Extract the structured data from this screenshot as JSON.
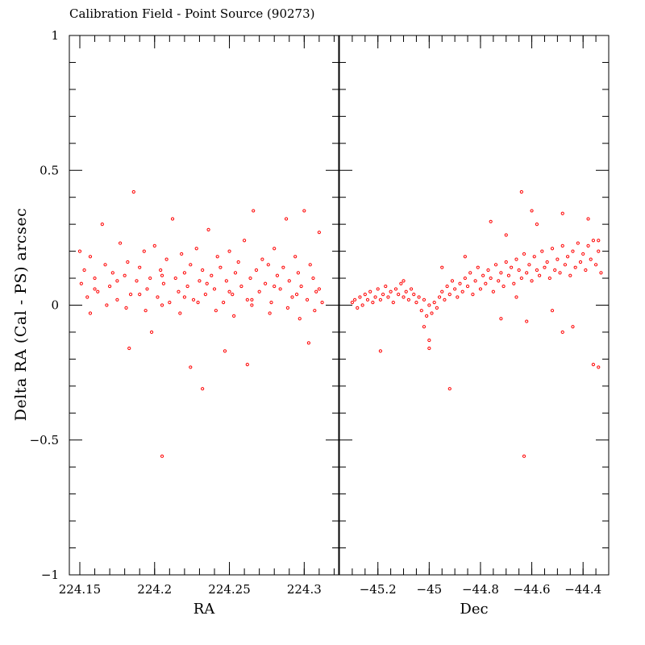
{
  "chart_data": {
    "type": "scatter",
    "title": "Calibration Field - Point Source (90273)",
    "ylabel": "Delta RA (Cal - PS) arcsec",
    "ylim": [
      -1,
      1
    ],
    "yticks": [
      -1,
      -0.5,
      0,
      0.5,
      1
    ],
    "ytick_labels": [
      "−1",
      "−0.5",
      "0",
      "0.5",
      "1"
    ],
    "marker_color": "#ff0000",
    "panels": [
      {
        "xlabel": "RA",
        "xlim": [
          224.143,
          224.323
        ],
        "xticks": [
          224.15,
          224.2,
          224.25,
          224.3
        ],
        "xtick_labels": [
          "224.15",
          "224.2",
          "224.25",
          "224.3"
        ],
        "x_minor_step": 0.01,
        "points": [
          [
            224.15,
            0.2
          ],
          [
            224.151,
            0.08
          ],
          [
            224.153,
            0.13
          ],
          [
            224.155,
            0.03
          ],
          [
            224.157,
            0.18
          ],
          [
            224.16,
            0.1
          ],
          [
            224.162,
            0.05
          ],
          [
            224.165,
            0.3
          ],
          [
            224.167,
            0.15
          ],
          [
            224.17,
            0.07
          ],
          [
            224.172,
            0.12
          ],
          [
            224.175,
            0.02
          ],
          [
            224.177,
            0.23
          ],
          [
            224.18,
            0.11
          ],
          [
            224.182,
            0.16
          ],
          [
            224.184,
            0.04
          ],
          [
            224.186,
            0.42
          ],
          [
            224.188,
            0.09
          ],
          [
            224.19,
            0.14
          ],
          [
            224.193,
            0.2
          ],
          [
            224.195,
            0.06
          ],
          [
            224.197,
            0.1
          ],
          [
            224.2,
            0.22
          ],
          [
            224.202,
            0.03
          ],
          [
            224.204,
            0.13
          ],
          [
            224.206,
            0.08
          ],
          [
            224.208,
            0.17
          ],
          [
            224.21,
            0.01
          ],
          [
            224.212,
            0.32
          ],
          [
            224.214,
            0.1
          ],
          [
            224.216,
            0.05
          ],
          [
            224.218,
            0.19
          ],
          [
            224.22,
            0.12
          ],
          [
            224.222,
            0.07
          ],
          [
            224.224,
            0.15
          ],
          [
            224.226,
            0.02
          ],
          [
            224.228,
            0.21
          ],
          [
            224.23,
            0.09
          ],
          [
            224.232,
            0.13
          ],
          [
            224.234,
            0.04
          ],
          [
            224.236,
            0.28
          ],
          [
            224.238,
            0.11
          ],
          [
            224.24,
            0.06
          ],
          [
            224.242,
            0.18
          ],
          [
            224.244,
            0.14
          ],
          [
            224.246,
            0.01
          ],
          [
            224.248,
            0.09
          ],
          [
            224.25,
            0.2
          ],
          [
            224.252,
            0.04
          ],
          [
            224.254,
            0.12
          ],
          [
            224.256,
            0.16
          ],
          [
            224.258,
            0.07
          ],
          [
            224.26,
            0.24
          ],
          [
            224.262,
            0.02
          ],
          [
            224.264,
            0.1
          ],
          [
            224.266,
            0.35
          ],
          [
            224.268,
            0.13
          ],
          [
            224.27,
            0.05
          ],
          [
            224.272,
            0.17
          ],
          [
            224.274,
            0.08
          ],
          [
            224.276,
            0.15
          ],
          [
            224.278,
            0.01
          ],
          [
            224.28,
            0.21
          ],
          [
            224.282,
            0.11
          ],
          [
            224.284,
            0.06
          ],
          [
            224.286,
            0.14
          ],
          [
            224.288,
            0.32
          ],
          [
            224.29,
            0.09
          ],
          [
            224.292,
            0.03
          ],
          [
            224.294,
            0.18
          ],
          [
            224.296,
            0.12
          ],
          [
            224.298,
            0.07
          ],
          [
            224.3,
            0.35
          ],
          [
            224.302,
            0.02
          ],
          [
            224.304,
            0.15
          ],
          [
            224.306,
            0.1
          ],
          [
            224.308,
            0.05
          ],
          [
            224.31,
            0.27
          ],
          [
            224.312,
            0.01
          ],
          [
            224.157,
            -0.03
          ],
          [
            224.168,
            0.0
          ],
          [
            224.181,
            -0.01
          ],
          [
            224.194,
            -0.02
          ],
          [
            224.205,
            0.0
          ],
          [
            224.217,
            -0.03
          ],
          [
            224.229,
            0.01
          ],
          [
            224.241,
            -0.02
          ],
          [
            224.253,
            -0.04
          ],
          [
            224.265,
            0.0
          ],
          [
            224.277,
            -0.03
          ],
          [
            224.289,
            -0.01
          ],
          [
            224.297,
            -0.05
          ],
          [
            224.307,
            -0.02
          ],
          [
            224.16,
            0.06
          ],
          [
            224.175,
            0.09
          ],
          [
            224.19,
            0.04
          ],
          [
            224.205,
            0.11
          ],
          [
            224.22,
            0.03
          ],
          [
            224.235,
            0.08
          ],
          [
            224.25,
            0.05
          ],
          [
            224.265,
            0.02
          ],
          [
            224.28,
            0.07
          ],
          [
            224.295,
            0.04
          ],
          [
            224.31,
            0.06
          ],
          [
            224.183,
            -0.16
          ],
          [
            224.198,
            -0.1
          ],
          [
            224.224,
            -0.23
          ],
          [
            224.232,
            -0.31
          ],
          [
            224.247,
            -0.17
          ],
          [
            224.262,
            -0.22
          ],
          [
            224.303,
            -0.14
          ],
          [
            224.205,
            -0.56
          ]
        ]
      },
      {
        "xlabel": "Dec",
        "xlim": [
          -45.35,
          -44.3
        ],
        "xticks": [
          -45.2,
          -45,
          -44.8,
          -44.6,
          -44.4
        ],
        "xtick_labels": [
          "−45.2",
          "−45",
          "−44.8",
          "−44.6",
          "−44.4"
        ],
        "x_minor_step": 0.05,
        "points": [
          [
            -45.3,
            0.01
          ],
          [
            -45.29,
            0.02
          ],
          [
            -45.28,
            -0.01
          ],
          [
            -45.27,
            0.03
          ],
          [
            -45.26,
            0.0
          ],
          [
            -45.25,
            0.04
          ],
          [
            -45.24,
            0.02
          ],
          [
            -45.23,
            0.05
          ],
          [
            -45.22,
            0.01
          ],
          [
            -45.21,
            0.03
          ],
          [
            -45.2,
            0.06
          ],
          [
            -45.19,
            0.02
          ],
          [
            -45.18,
            0.04
          ],
          [
            -45.17,
            0.07
          ],
          [
            -45.16,
            0.03
          ],
          [
            -45.15,
            0.05
          ],
          [
            -45.14,
            0.01
          ],
          [
            -45.13,
            0.06
          ],
          [
            -45.12,
            0.04
          ],
          [
            -45.11,
            0.08
          ],
          [
            -45.1,
            0.03
          ],
          [
            -45.09,
            0.05
          ],
          [
            -45.08,
            0.02
          ],
          [
            -45.07,
            0.06
          ],
          [
            -45.06,
            0.04
          ],
          [
            -45.05,
            0.01
          ],
          [
            -45.04,
            0.03
          ],
          [
            -45.03,
            -0.02
          ],
          [
            -45.02,
            0.02
          ],
          [
            -45.01,
            -0.04
          ],
          [
            -45.0,
            0.0
          ],
          [
            -44.99,
            -0.03
          ],
          [
            -44.98,
            0.01
          ],
          [
            -44.97,
            -0.01
          ],
          [
            -44.96,
            0.03
          ],
          [
            -44.95,
            0.05
          ],
          [
            -44.94,
            0.02
          ],
          [
            -44.93,
            0.07
          ],
          [
            -44.92,
            0.04
          ],
          [
            -44.91,
            0.09
          ],
          [
            -44.9,
            0.06
          ],
          [
            -44.89,
            0.03
          ],
          [
            -44.88,
            0.08
          ],
          [
            -44.87,
            0.05
          ],
          [
            -44.86,
            0.1
          ],
          [
            -44.85,
            0.07
          ],
          [
            -44.84,
            0.12
          ],
          [
            -44.83,
            0.04
          ],
          [
            -44.82,
            0.09
          ],
          [
            -44.81,
            0.14
          ],
          [
            -44.8,
            0.06
          ],
          [
            -44.79,
            0.11
          ],
          [
            -44.78,
            0.08
          ],
          [
            -44.77,
            0.13
          ],
          [
            -44.76,
            0.1
          ],
          [
            -44.75,
            0.05
          ],
          [
            -44.74,
            0.15
          ],
          [
            -44.73,
            0.09
          ],
          [
            -44.72,
            0.12
          ],
          [
            -44.71,
            0.07
          ],
          [
            -44.7,
            0.16
          ],
          [
            -44.69,
            0.11
          ],
          [
            -44.68,
            0.14
          ],
          [
            -44.67,
            0.08
          ],
          [
            -44.66,
            0.17
          ],
          [
            -44.65,
            0.13
          ],
          [
            -44.64,
            0.1
          ],
          [
            -44.63,
            0.19
          ],
          [
            -44.62,
            0.12
          ],
          [
            -44.61,
            0.15
          ],
          [
            -44.6,
            0.09
          ],
          [
            -44.59,
            0.18
          ],
          [
            -44.58,
            0.13
          ],
          [
            -44.57,
            0.11
          ],
          [
            -44.56,
            0.2
          ],
          [
            -44.55,
            0.14
          ],
          [
            -44.54,
            0.16
          ],
          [
            -44.53,
            0.1
          ],
          [
            -44.52,
            0.21
          ],
          [
            -44.51,
            0.13
          ],
          [
            -44.5,
            0.17
          ],
          [
            -44.49,
            0.12
          ],
          [
            -44.48,
            0.22
          ],
          [
            -44.47,
            0.15
          ],
          [
            -44.46,
            0.18
          ],
          [
            -44.45,
            0.11
          ],
          [
            -44.44,
            0.2
          ],
          [
            -44.43,
            0.14
          ],
          [
            -44.42,
            0.23
          ],
          [
            -44.41,
            0.16
          ],
          [
            -44.4,
            0.19
          ],
          [
            -44.39,
            0.13
          ],
          [
            -44.38,
            0.22
          ],
          [
            -44.37,
            0.17
          ],
          [
            -44.36,
            0.24
          ],
          [
            -44.35,
            0.15
          ],
          [
            -44.34,
            0.2
          ],
          [
            -44.33,
            0.12
          ],
          [
            -44.95,
            0.14
          ],
          [
            -44.86,
            0.18
          ],
          [
            -44.76,
            0.31
          ],
          [
            -44.7,
            0.26
          ],
          [
            -44.64,
            0.42
          ],
          [
            -44.6,
            0.35
          ],
          [
            -44.58,
            0.3
          ],
          [
            -44.48,
            0.34
          ],
          [
            -44.38,
            0.32
          ],
          [
            -44.34,
            0.24
          ],
          [
            -45.1,
            0.09
          ],
          [
            -45.02,
            -0.08
          ],
          [
            -45.0,
            -0.13
          ],
          [
            -45.0,
            -0.16
          ],
          [
            -45.19,
            -0.17
          ],
          [
            -44.92,
            -0.31
          ],
          [
            -44.72,
            -0.05
          ],
          [
            -44.62,
            -0.06
          ],
          [
            -44.48,
            -0.1
          ],
          [
            -44.44,
            -0.08
          ],
          [
            -44.36,
            -0.22
          ],
          [
            -44.34,
            -0.23
          ],
          [
            -44.63,
            -0.56
          ],
          [
            -44.52,
            -0.02
          ],
          [
            -44.66,
            0.03
          ]
        ]
      }
    ]
  }
}
